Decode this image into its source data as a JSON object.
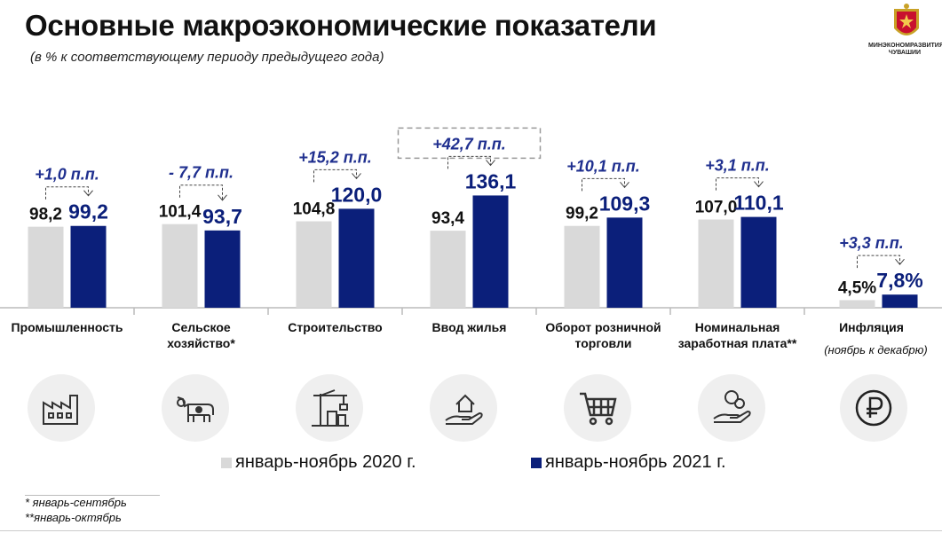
{
  "header": {
    "title": "Основные макроэкономические показатели",
    "subtitle": "(в % к соответствующему периоду предыдущего года)",
    "logo_text": "МИНЭКОНОМРАЗВИТИЯ ЧУВАШИИ"
  },
  "colors": {
    "series_2020": "#d9d9d9",
    "series_2021": "#0b1f7a",
    "delta": "#1f2f8f",
    "text": "#111111"
  },
  "chart_data": {
    "type": "bar",
    "title": "Основные макроэкономические показатели",
    "subtitle": "(в % к соответствующему периоду предыдущего года)",
    "categories": [
      "Промышленность",
      "Сельское хозяйство*",
      "Строительство",
      "Ввод жилья",
      "Оборот розничной торговли",
      "Номинальная заработная плата**",
      "Инфляция"
    ],
    "category_lines": [
      [
        "Промышленность"
      ],
      [
        "Сельское",
        "хозяйство*"
      ],
      [
        "Строительство"
      ],
      [
        "Ввод жилья"
      ],
      [
        "Оборот розничной",
        "торговли"
      ],
      [
        "Номинальная",
        "заработная плата**"
      ],
      [
        "Инфляция"
      ]
    ],
    "category_note": {
      "index": 6,
      "text": "(ноябрь к декабрю)"
    },
    "series": [
      {
        "name": "январь-ноябрь 2020 г.",
        "values": [
          98.2,
          101.4,
          104.8,
          93.4,
          99.2,
          107.0,
          4.5
        ],
        "labels": [
          "98,2",
          "101,4",
          "104,8",
          "93,4",
          "99,2",
          "107,0",
          "4,5%"
        ]
      },
      {
        "name": "январь-ноябрь 2021 г.",
        "values": [
          99.2,
          93.7,
          120.0,
          136.1,
          109.3,
          110.1,
          7.8
        ],
        "labels": [
          "99,2",
          "93,7",
          "120,0",
          "136,1",
          "109,3",
          "110,1",
          "7,8%"
        ]
      }
    ],
    "deltas": [
      "+1,0 п.п.",
      "- 7,7 п.п.",
      "+15,2 п.п.",
      "+42,7 п.п.",
      "+10,1 п.п.",
      "+3,1 п.п.",
      "+3,3 п.п."
    ],
    "highlighted_delta_index": 3,
    "legend_position": "bottom",
    "grid": false
  },
  "icons": [
    {
      "name": "factory-icon"
    },
    {
      "name": "cow-icon"
    },
    {
      "name": "construction-crane-icon"
    },
    {
      "name": "house-in-hand-icon"
    },
    {
      "name": "shopping-cart-icon"
    },
    {
      "name": "coins-in-hand-icon"
    },
    {
      "name": "ruble-icon"
    }
  ],
  "legend": {
    "item_2020": "январь-ноябрь 2020 г.",
    "item_2021": "январь-ноябрь 2021 г."
  },
  "footnotes": [
    "* январь-сентябрь",
    "**январь-октябрь"
  ]
}
